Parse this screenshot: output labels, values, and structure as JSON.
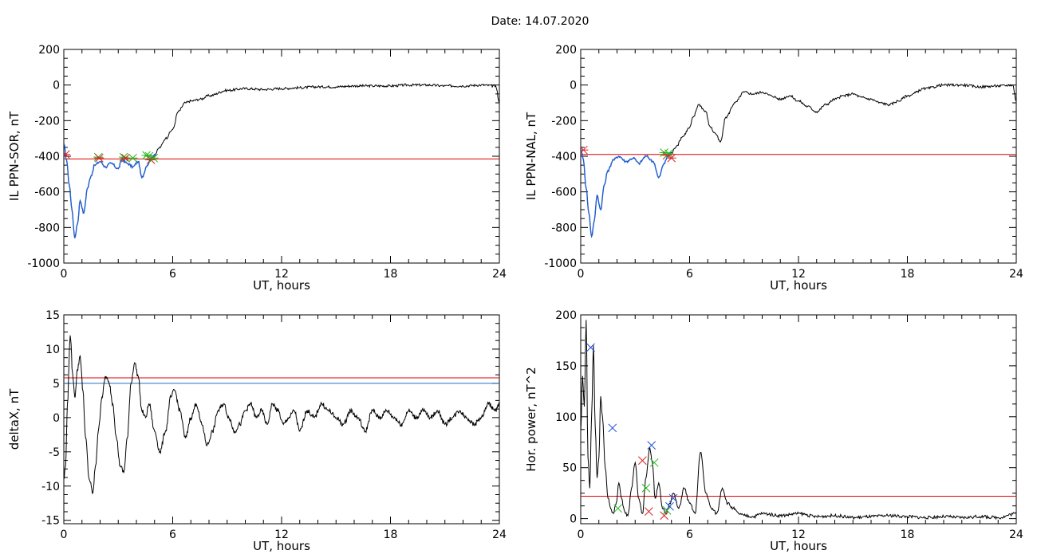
{
  "title": "Date:  14.07.2020",
  "colors": {
    "threshold_red": "#e00000",
    "threshold_blue": "#1f6fc0",
    "trace_blue": "#1f5fd0",
    "marker_green": "#22bb22",
    "marker_red": "#dd2222",
    "marker_blue": "#2255dd",
    "line": "#000000"
  },
  "chart_data": [
    {
      "type": "line",
      "xlabel": "UT, hours",
      "ylabel": "IL PPN-SOR, nT",
      "xlim": [
        0,
        24
      ],
      "ylim": [
        -1000,
        200
      ],
      "xticks": [
        0,
        6,
        12,
        18,
        24
      ],
      "yticks": [
        -1000,
        -800,
        -600,
        -400,
        -200,
        0,
        200
      ],
      "xtick_labels": [
        "0",
        "6",
        "12",
        "18",
        "24"
      ],
      "ytick_labels": [
        "-1000",
        "-800",
        "-600",
        "-400",
        "-200",
        "0",
        "200"
      ],
      "threshold_lines": [
        {
          "y": -415,
          "color": "#e00000"
        }
      ],
      "highlight": {
        "x_range": [
          0,
          5.1
        ],
        "color": "#1f5fd0"
      },
      "series": [
        {
          "values_x": [
            0,
            0.15,
            0.3,
            0.45,
            0.6,
            0.75,
            0.9,
            1.1,
            1.3,
            1.5,
            1.7,
            2.0,
            2.3,
            2.6,
            3.0,
            3.2,
            3.5,
            3.8,
            4.1,
            4.3,
            4.6,
            4.8,
            5.0,
            5.3,
            5.6,
            6.0,
            6.3,
            6.7,
            7.0,
            7.5,
            8.0,
            9.0,
            10.0,
            11.0,
            12.0,
            13.0,
            14.0,
            15.0,
            16.0,
            17.0,
            18.0,
            19.0,
            20.0,
            21.0,
            22.0,
            23.0,
            23.8,
            24.0
          ],
          "values_y": [
            -330,
            -420,
            -560,
            -700,
            -860,
            -780,
            -650,
            -720,
            -580,
            -510,
            -450,
            -430,
            -460,
            -440,
            -470,
            -420,
            -440,
            -460,
            -430,
            -520,
            -450,
            -410,
            -390,
            -350,
            -300,
            -250,
            -150,
            -100,
            -90,
            -80,
            -60,
            -30,
            -20,
            -25,
            -20,
            -15,
            -10,
            -10,
            -5,
            -5,
            -5,
            0,
            0,
            -5,
            -5,
            0,
            -5,
            -100
          ]
        }
      ],
      "markers": [
        {
          "x": 0.1,
          "y": -390,
          "color": "#dd2222"
        },
        {
          "x": 1.9,
          "y": -405,
          "color": "#22bb22"
        },
        {
          "x": 1.95,
          "y": -410,
          "color": "#dd2222"
        },
        {
          "x": 3.3,
          "y": -405,
          "color": "#22bb22"
        },
        {
          "x": 3.4,
          "y": -410,
          "color": "#dd2222"
        },
        {
          "x": 3.8,
          "y": -410,
          "color": "#22bb22"
        },
        {
          "x": 4.55,
          "y": -395,
          "color": "#22bb22"
        },
        {
          "x": 4.7,
          "y": -400,
          "color": "#22bb22"
        },
        {
          "x": 4.8,
          "y": -420,
          "color": "#dd2222"
        },
        {
          "x": 4.95,
          "y": -410,
          "color": "#22bb22"
        }
      ]
    },
    {
      "type": "line",
      "xlabel": "UT, hours",
      "ylabel": "IL PPN-NAL, nT",
      "xlim": [
        0,
        24
      ],
      "ylim": [
        -1000,
        200
      ],
      "xticks": [
        0,
        6,
        12,
        18,
        24
      ],
      "yticks": [
        -1000,
        -800,
        -600,
        -400,
        -200,
        0,
        200
      ],
      "xtick_labels": [
        "0",
        "6",
        "12",
        "18",
        "24"
      ],
      "ytick_labels": [
        "-1000",
        "-800",
        "-600",
        "-400",
        "-200",
        "0",
        "200"
      ],
      "threshold_lines": [
        {
          "y": -390,
          "color": "#e00000"
        }
      ],
      "highlight": {
        "x_range": [
          0,
          5.0
        ],
        "color": "#1f5fd0"
      },
      "series": [
        {
          "values_x": [
            0,
            0.15,
            0.3,
            0.45,
            0.6,
            0.75,
            0.9,
            1.1,
            1.3,
            1.5,
            1.8,
            2.1,
            2.5,
            2.9,
            3.2,
            3.6,
            4.0,
            4.3,
            4.6,
            4.8,
            5.0,
            5.3,
            5.6,
            6.0,
            6.2,
            6.5,
            6.9,
            7.1,
            7.4,
            7.7,
            8.0,
            8.5,
            9.0,
            9.5,
            10.0,
            10.5,
            11.0,
            11.5,
            12.0,
            12.5,
            13.0,
            13.5,
            14.0,
            14.5,
            15.0,
            15.5,
            16.0,
            16.5,
            17.0,
            17.5,
            18.0,
            19.0,
            20.0,
            21.0,
            22.0,
            23.0,
            23.8,
            24.0
          ],
          "values_y": [
            -360,
            -420,
            -580,
            -720,
            -850,
            -760,
            -620,
            -700,
            -560,
            -480,
            -420,
            -400,
            -430,
            -410,
            -440,
            -400,
            -430,
            -520,
            -440,
            -400,
            -380,
            -340,
            -290,
            -240,
            -180,
            -110,
            -150,
            -230,
            -270,
            -320,
            -180,
            -100,
            -40,
            -50,
            -40,
            -60,
            -80,
            -60,
            -90,
            -120,
            -150,
            -110,
            -80,
            -60,
            -50,
            -70,
            -80,
            -100,
            -110,
            -90,
            -60,
            -20,
            0,
            0,
            -10,
            -5,
            0,
            -90
          ]
        }
      ],
      "markers": [
        {
          "x": 0.15,
          "y": -365,
          "color": "#dd2222"
        },
        {
          "x": 4.6,
          "y": -380,
          "color": "#22bb22"
        },
        {
          "x": 4.75,
          "y": -395,
          "color": "#dd2222"
        },
        {
          "x": 4.85,
          "y": -385,
          "color": "#22bb22"
        },
        {
          "x": 5.0,
          "y": -410,
          "color": "#dd2222"
        }
      ]
    },
    {
      "type": "line",
      "xlabel": "UT, hours",
      "ylabel": "deltaX, nT",
      "xlim": [
        0,
        24
      ],
      "ylim": [
        -15.5,
        15
      ],
      "xticks": [
        0,
        6,
        12,
        18,
        24
      ],
      "yticks": [
        -15,
        -10,
        -5,
        0,
        5,
        10,
        15
      ],
      "xtick_labels": [
        "0",
        "6",
        "12",
        "18",
        "24"
      ],
      "ytick_labels": [
        "-15",
        "-10",
        "-5",
        "0",
        "5",
        "10",
        "15"
      ],
      "threshold_lines": [
        {
          "y": 5.8,
          "color": "#e00000"
        },
        {
          "y": 5.0,
          "color": "#1f6fc0"
        }
      ],
      "series": [
        {
          "values_x": [
            0,
            0.1,
            0.2,
            0.35,
            0.5,
            0.6,
            0.75,
            0.9,
            1.05,
            1.2,
            1.4,
            1.6,
            1.75,
            1.9,
            2.1,
            2.3,
            2.5,
            2.7,
            2.9,
            3.1,
            3.3,
            3.5,
            3.7,
            3.9,
            4.1,
            4.3,
            4.5,
            4.7,
            5.0,
            5.3,
            5.6,
            5.9,
            6.1,
            6.4,
            6.7,
            7.0,
            7.3,
            7.6,
            7.9,
            8.2,
            8.5,
            8.8,
            9.1,
            9.4,
            9.7,
            10.0,
            10.3,
            10.6,
            10.9,
            11.2,
            11.5,
            11.8,
            12.1,
            12.4,
            12.7,
            13.0,
            13.4,
            13.8,
            14.2,
            14.6,
            15.0,
            15.4,
            15.8,
            16.2,
            16.6,
            17.0,
            17.4,
            17.8,
            18.2,
            18.6,
            19.0,
            19.4,
            19.8,
            20.2,
            20.6,
            21.0,
            21.4,
            21.8,
            22.2,
            22.6,
            23.0,
            23.4,
            23.8,
            24.0
          ],
          "values_y": [
            -9,
            -7,
            2,
            12,
            6,
            3,
            7,
            9,
            4,
            -3,
            -9,
            -11,
            -7,
            -2,
            3,
            6,
            5,
            2,
            -3,
            -7,
            -8,
            -3,
            5,
            8,
            6,
            1,
            0,
            2,
            -2,
            -5,
            -2,
            3,
            4,
            1,
            -3,
            0,
            2,
            -1,
            -4,
            -2,
            1,
            2,
            0,
            -2,
            -1,
            1,
            2,
            0,
            1,
            -1,
            2,
            1,
            -1,
            0,
            1,
            -2,
            1,
            0,
            2,
            1,
            0,
            -1,
            1,
            0,
            -2,
            1,
            0,
            1,
            0,
            -1,
            1,
            0,
            1,
            0,
            1,
            -1,
            0,
            1,
            0,
            -1,
            0,
            2,
            1,
            2
          ]
        }
      ]
    },
    {
      "type": "line",
      "xlabel": "UT, hours",
      "ylabel": "Hor. power, nT^2",
      "xlim": [
        0,
        24
      ],
      "ylim": [
        -5,
        200
      ],
      "xticks": [
        0,
        6,
        12,
        18,
        24
      ],
      "yticks": [
        0,
        50,
        100,
        150,
        200
      ],
      "xtick_labels": [
        "0",
        "6",
        "12",
        "18",
        "24"
      ],
      "ytick_labels": [
        "0",
        "50",
        "100",
        "150",
        "200"
      ],
      "threshold_lines": [
        {
          "y": 22,
          "color": "#e00000"
        }
      ],
      "series": [
        {
          "values_x": [
            0,
            0.1,
            0.2,
            0.3,
            0.4,
            0.5,
            0.6,
            0.7,
            0.8,
            0.9,
            1.0,
            1.1,
            1.2,
            1.35,
            1.5,
            1.65,
            1.8,
            1.95,
            2.1,
            2.25,
            2.4,
            2.6,
            2.8,
            3.0,
            3.2,
            3.4,
            3.6,
            3.8,
            3.95,
            4.1,
            4.3,
            4.5,
            4.7,
            4.9,
            5.1,
            5.4,
            5.7,
            6.0,
            6.3,
            6.6,
            6.9,
            7.2,
            7.5,
            7.8,
            8.1,
            8.4,
            8.7,
            9.0,
            9.5,
            10.0,
            11.0,
            12.0,
            13.0,
            14.0,
            15.0,
            16.0,
            17.0,
            18.0,
            19.0,
            20.0,
            21.0,
            22.0,
            23.0,
            24.0
          ],
          "values_y": [
            85,
            140,
            110,
            195,
            60,
            30,
            100,
            170,
            90,
            40,
            60,
            120,
            100,
            50,
            20,
            10,
            5,
            15,
            35,
            20,
            8,
            3,
            30,
            55,
            20,
            5,
            40,
            70,
            55,
            20,
            35,
            10,
            5,
            15,
            25,
            10,
            30,
            15,
            5,
            65,
            25,
            10,
            5,
            30,
            15,
            10,
            5,
            3,
            2,
            5,
            3,
            5,
            2,
            3,
            1,
            2,
            3,
            2,
            1,
            2,
            1,
            2,
            1,
            5
          ]
        }
      ],
      "markers": [
        {
          "x": 0.55,
          "y": 168,
          "color": "#2255dd"
        },
        {
          "x": 1.75,
          "y": 89,
          "color": "#2255dd"
        },
        {
          "x": 2.05,
          "y": 10,
          "color": "#22bb22"
        },
        {
          "x": 3.4,
          "y": 57,
          "color": "#dd2222"
        },
        {
          "x": 3.6,
          "y": 30,
          "color": "#22bb22"
        },
        {
          "x": 3.75,
          "y": 7,
          "color": "#dd2222"
        },
        {
          "x": 3.9,
          "y": 72,
          "color": "#2255dd"
        },
        {
          "x": 4.05,
          "y": 55,
          "color": "#22bb22"
        },
        {
          "x": 4.6,
          "y": 3,
          "color": "#dd2222"
        },
        {
          "x": 4.75,
          "y": 8,
          "color": "#22bb22"
        },
        {
          "x": 4.9,
          "y": 12,
          "color": "#2255dd"
        },
        {
          "x": 5.1,
          "y": 20,
          "color": "#2255dd"
        }
      ]
    }
  ]
}
